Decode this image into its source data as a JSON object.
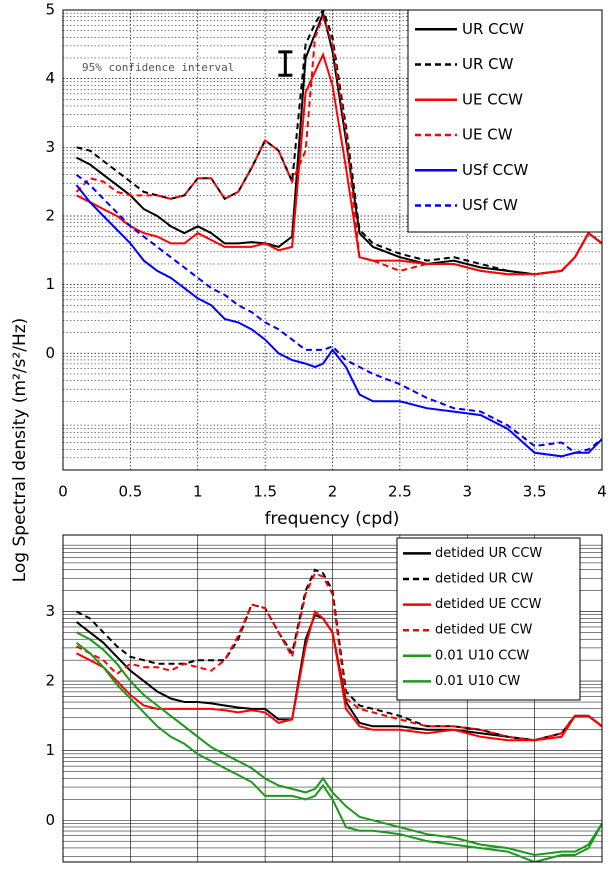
{
  "chart_data": [
    {
      "type": "line",
      "xlabel": "frequency (cpd)",
      "ylabel": "Log Spectral density (m²/s²/Hz)",
      "annotation": "95% confidence interval",
      "ci_bar": {
        "x": 1.65,
        "value": 4.22,
        "error": 0.17
      },
      "xlim": [
        0,
        4
      ],
      "ylim": [
        -1.7,
        5
      ],
      "xticks": [
        0,
        0.5,
        1,
        1.5,
        2,
        2.5,
        3,
        3.5,
        4
      ],
      "yticks": [
        0,
        1,
        2,
        3,
        4,
        5
      ],
      "grid": "dotted",
      "legend": "upper right",
      "x": [
        0.1,
        0.2,
        0.3,
        0.4,
        0.5,
        0.6,
        0.7,
        0.8,
        0.9,
        1.0,
        1.1,
        1.2,
        1.3,
        1.4,
        1.5,
        1.6,
        1.7,
        1.8,
        1.87,
        1.93,
        2.0,
        2.1,
        2.2,
        2.3,
        2.5,
        2.7,
        2.9,
        3.1,
        3.3,
        3.5,
        3.7,
        3.8,
        3.9,
        4.0
      ],
      "series": [
        {
          "name": "UR CCW",
          "color": "#000000",
          "dash": false,
          "values": [
            2.85,
            2.75,
            2.6,
            2.45,
            2.3,
            2.1,
            2.0,
            1.85,
            1.75,
            1.85,
            1.75,
            1.6,
            1.6,
            1.62,
            1.6,
            1.55,
            1.7,
            4.3,
            4.65,
            4.95,
            4.4,
            3.1,
            1.75,
            1.55,
            1.4,
            1.3,
            1.35,
            1.25,
            1.2,
            1.15,
            1.2,
            1.4,
            1.75,
            1.6
          ]
        },
        {
          "name": "UR CW",
          "color": "#000000",
          "dash": true,
          "values": [
            3.0,
            2.95,
            2.8,
            2.65,
            2.5,
            2.35,
            2.3,
            2.25,
            2.3,
            2.55,
            2.55,
            2.25,
            2.35,
            2.7,
            3.1,
            2.95,
            2.5,
            4.5,
            4.8,
            5.0,
            4.6,
            3.3,
            1.8,
            1.6,
            1.45,
            1.35,
            1.4,
            1.3,
            1.2,
            1.15,
            1.2,
            1.4,
            1.75,
            1.6
          ]
        },
        {
          "name": "UE CCW",
          "color": "#ff0000",
          "dash": false,
          "values": [
            2.3,
            2.2,
            2.1,
            2.0,
            1.85,
            1.75,
            1.7,
            1.6,
            1.6,
            1.75,
            1.65,
            1.55,
            1.55,
            1.55,
            1.6,
            1.5,
            1.55,
            3.8,
            4.1,
            4.35,
            3.9,
            2.7,
            1.4,
            1.35,
            1.35,
            1.3,
            1.3,
            1.2,
            1.15,
            1.15,
            1.2,
            1.4,
            1.75,
            1.6
          ]
        },
        {
          "name": "UE CW",
          "color": "#ff0000",
          "dash": true,
          "values": [
            2.35,
            2.55,
            2.5,
            2.35,
            2.3,
            2.3,
            2.3,
            2.25,
            2.3,
            2.55,
            2.55,
            2.25,
            2.35,
            2.7,
            3.1,
            2.95,
            2.5,
            2.95,
            4.6,
            4.9,
            4.5,
            3.2,
            1.4,
            1.35,
            1.2,
            1.3,
            1.3,
            1.2,
            1.15,
            1.15,
            1.2,
            1.4,
            1.75,
            1.6
          ]
        },
        {
          "name": "USf CCW",
          "color": "#0000ff",
          "dash": false,
          "values": [
            2.45,
            2.2,
            2.0,
            1.8,
            1.6,
            1.35,
            1.2,
            1.1,
            0.95,
            0.8,
            0.7,
            0.5,
            0.45,
            0.35,
            0.2,
            0.0,
            -0.1,
            -0.15,
            -0.2,
            -0.15,
            0.05,
            -0.2,
            -0.6,
            -0.7,
            -0.7,
            -0.8,
            -0.85,
            -0.9,
            -1.1,
            -1.45,
            -1.5,
            -1.45,
            -1.45,
            -1.25
          ]
        },
        {
          "name": "USf CW",
          "color": "#0000ff",
          "dash": true,
          "values": [
            2.6,
            2.45,
            2.25,
            2.05,
            1.85,
            1.7,
            1.55,
            1.4,
            1.25,
            1.1,
            0.95,
            0.85,
            0.7,
            0.6,
            0.45,
            0.35,
            0.2,
            0.05,
            0.05,
            0.05,
            0.1,
            -0.1,
            -0.2,
            -0.3,
            -0.45,
            -0.65,
            -0.8,
            -0.85,
            -1.05,
            -1.35,
            -1.3,
            -1.45,
            -1.4,
            -1.25
          ]
        }
      ]
    },
    {
      "type": "line",
      "xlim": [
        0,
        4
      ],
      "ylim": [
        -0.6,
        4.1
      ],
      "xticks": [
        0,
        0.5,
        1,
        1.5,
        2,
        2.5,
        3,
        3.5,
        4
      ],
      "xtick_labels": false,
      "yticks": [
        0,
        1,
        2,
        3
      ],
      "grid": "solid",
      "legend": "upper right",
      "x": [
        0.1,
        0.2,
        0.3,
        0.4,
        0.5,
        0.6,
        0.7,
        0.8,
        0.9,
        1.0,
        1.1,
        1.2,
        1.3,
        1.4,
        1.5,
        1.6,
        1.7,
        1.8,
        1.87,
        1.93,
        2.0,
        2.1,
        2.2,
        2.3,
        2.5,
        2.7,
        2.9,
        3.1,
        3.3,
        3.5,
        3.7,
        3.8,
        3.9,
        4.0
      ],
      "series": [
        {
          "name": "detided UR CCW",
          "color": "#000000",
          "dash": false,
          "values": [
            2.85,
            2.7,
            2.55,
            2.35,
            2.15,
            2.0,
            1.85,
            1.75,
            1.7,
            1.7,
            1.68,
            1.65,
            1.62,
            1.6,
            1.6,
            1.45,
            1.45,
            2.6,
            2.95,
            2.9,
            2.7,
            1.7,
            1.4,
            1.35,
            1.35,
            1.3,
            1.3,
            1.25,
            1.2,
            1.15,
            1.25,
            1.5,
            1.5,
            1.35
          ]
        },
        {
          "name": "detided UR CW",
          "color": "#000000",
          "dash": true,
          "values": [
            3.0,
            2.9,
            2.7,
            2.5,
            2.35,
            2.3,
            2.25,
            2.25,
            2.25,
            2.3,
            2.3,
            2.3,
            2.6,
            3.1,
            3.05,
            2.7,
            2.4,
            3.3,
            3.6,
            3.55,
            3.3,
            1.85,
            1.65,
            1.6,
            1.5,
            1.35,
            1.35,
            1.3,
            1.2,
            1.15,
            1.25,
            1.5,
            1.5,
            1.35
          ]
        },
        {
          "name": "detided UE CCW",
          "color": "#ff0000",
          "dash": false,
          "values": [
            2.4,
            2.3,
            2.2,
            2.0,
            1.8,
            1.65,
            1.6,
            1.6,
            1.6,
            1.6,
            1.6,
            1.58,
            1.55,
            1.58,
            1.55,
            1.4,
            1.45,
            2.5,
            3.0,
            2.9,
            2.7,
            1.6,
            1.35,
            1.3,
            1.3,
            1.25,
            1.3,
            1.2,
            1.15,
            1.15,
            1.2,
            1.5,
            1.5,
            1.35
          ]
        },
        {
          "name": "detided UE CW",
          "color": "#ff0000",
          "dash": true,
          "values": [
            2.5,
            2.4,
            2.3,
            2.1,
            2.25,
            2.2,
            2.2,
            2.15,
            2.25,
            2.2,
            2.15,
            2.3,
            2.65,
            3.1,
            3.05,
            2.7,
            2.35,
            3.25,
            3.55,
            3.5,
            3.25,
            1.75,
            1.6,
            1.55,
            1.45,
            1.35,
            1.35,
            1.3,
            1.2,
            1.15,
            1.25,
            1.5,
            1.5,
            1.35
          ]
        },
        {
          "name": "0.01 U10 CCW",
          "color": "#1a9a1a",
          "dash": false,
          "values": [
            2.55,
            2.4,
            2.2,
            1.95,
            1.75,
            1.55,
            1.35,
            1.2,
            1.1,
            0.95,
            0.85,
            0.75,
            0.65,
            0.55,
            0.35,
            0.35,
            0.35,
            0.3,
            0.35,
            0.5,
            0.3,
            -0.1,
            -0.15,
            -0.15,
            -0.2,
            -0.3,
            -0.35,
            -0.4,
            -0.45,
            -0.6,
            -0.5,
            -0.5,
            -0.4,
            -0.05
          ]
        },
        {
          "name": "0.01 U10 CW",
          "color": "#1a9a1a",
          "dash": false,
          "values": [
            2.7,
            2.6,
            2.45,
            2.25,
            2.0,
            1.8,
            1.65,
            1.5,
            1.35,
            1.2,
            1.05,
            0.95,
            0.85,
            0.75,
            0.6,
            0.5,
            0.45,
            0.4,
            0.45,
            0.6,
            0.4,
            0.2,
            0.05,
            0.0,
            -0.1,
            -0.2,
            -0.25,
            -0.35,
            -0.4,
            -0.5,
            -0.45,
            -0.45,
            -0.35,
            -0.05
          ]
        }
      ]
    }
  ]
}
